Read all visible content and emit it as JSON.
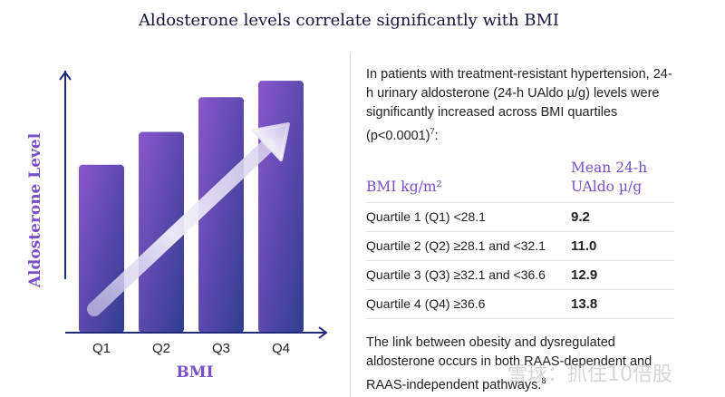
{
  "title": "Aldosterone levels correlate significantly with BMI",
  "chart_data": {
    "type": "bar",
    "title": "",
    "xlabel": "BMI",
    "ylabel": "Aldosterone Level",
    "categories": [
      "Q1",
      "Q2",
      "Q3",
      "Q4"
    ],
    "values": [
      9.2,
      11.0,
      12.9,
      13.8
    ],
    "ylim": [
      0,
      15
    ],
    "grid": false,
    "legend": "none",
    "annotation": "upward trend arrow",
    "colors": {
      "bar_top": "#8a56cc",
      "bar_bottom": "#2f3d8f",
      "axis": "#1f2a7a",
      "label": "#7b4fc9"
    }
  },
  "panel": {
    "intro": "In patients with treatment-resistant hypertension, 24-h urinary aldosterone  (24-h UAldo µ/g) levels were significantly increased across BMI quartiles (p<0.0001)",
    "intro_ref": "7",
    "intro_end": ":",
    "table": {
      "headers": [
        "BMI kg/m²",
        "Mean 24-h UAldo µ/g"
      ],
      "rows": [
        {
          "label": "Quartile 1 (Q1) <28.1",
          "value": "9.2"
        },
        {
          "label": "Quartile 2 (Q2) ≥28.1 and <32.1",
          "value": "11.0"
        },
        {
          "label": "Quartile 3 (Q3) ≥32.1 and <36.6",
          "value": "12.9"
        },
        {
          "label": "Quartile 4 (Q4) ≥36.6",
          "value": "13.8"
        }
      ]
    },
    "outro": "The link between obesity and dysregulated aldosterone occurs in both RAAS-dependent and RAAS-independent pathways.",
    "outro_ref": "8"
  },
  "watermark": "雪球：抓住10倍股"
}
